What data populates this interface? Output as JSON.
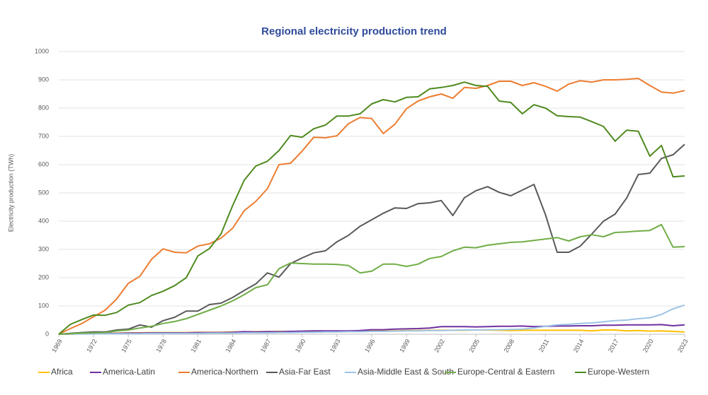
{
  "chart_data": {
    "type": "line",
    "title": "Regional electricity production trend",
    "y_label": "Electricity production (TWh)",
    "x": [
      1969,
      1970,
      1971,
      1972,
      1973,
      1974,
      1975,
      1976,
      1977,
      1978,
      1979,
      1980,
      1981,
      1982,
      1983,
      1984,
      1985,
      1986,
      1987,
      1988,
      1989,
      1990,
      1991,
      1992,
      1993,
      1994,
      1995,
      1996,
      1997,
      1998,
      1999,
      2000,
      2001,
      2002,
      2003,
      2004,
      2005,
      2006,
      2007,
      2008,
      2009,
      2010,
      2011,
      2012,
      2013,
      2014,
      2015,
      2016,
      2017,
      2018,
      2019,
      2020,
      2021,
      2022,
      2023
    ],
    "xlim": [
      1969,
      2023
    ],
    "xticks": [
      1969,
      1972,
      1975,
      1978,
      1981,
      1984,
      1987,
      1990,
      1993,
      1996,
      1999,
      2002,
      2005,
      2008,
      2011,
      2014,
      2017,
      2020,
      2023
    ],
    "ylim": [
      0,
      1000
    ],
    "yticks": [
      0,
      100,
      200,
      300,
      400,
      500,
      600,
      700,
      800,
      900,
      1000
    ],
    "grid": true,
    "legend": "bottom",
    "series": [
      {
        "name": "Africa",
        "color": "#ffc000",
        "values": [
          0,
          1,
          2,
          3,
          3,
          4,
          5,
          5,
          6,
          6,
          6,
          6,
          7,
          7,
          7,
          8,
          8,
          9,
          9,
          10,
          10,
          10,
          11,
          11,
          11,
          11,
          11,
          12,
          12,
          12,
          13,
          13,
          14,
          14,
          14,
          14,
          15,
          15,
          14,
          13,
          14,
          14,
          14,
          14,
          14,
          14,
          12,
          15,
          15,
          12,
          13,
          11,
          12,
          10,
          8
        ]
      },
      {
        "name": "America-Latin",
        "color": "#7030a0",
        "values": [
          0,
          1,
          2,
          2,
          3,
          3,
          4,
          4,
          5,
          5,
          5,
          5,
          6,
          6,
          6,
          7,
          9,
          8,
          9,
          9,
          10,
          11,
          12,
          12,
          12,
          12,
          13,
          16,
          16,
          18,
          19,
          20,
          22,
          27,
          27,
          27,
          26,
          27,
          28,
          28,
          29,
          27,
          28,
          29,
          29,
          30,
          30,
          32,
          32,
          33,
          33,
          33,
          34,
          30,
          33
        ]
      },
      {
        "name": "America-Northern",
        "color": "#ed7d31",
        "values": [
          0,
          20,
          38,
          62,
          85,
          125,
          180,
          205,
          265,
          302,
          290,
          288,
          312,
          320,
          340,
          375,
          437,
          470,
          515,
          600,
          605,
          648,
          697,
          695,
          702,
          745,
          767,
          763,
          710,
          743,
          798,
          825,
          840,
          850,
          835,
          873,
          870,
          880,
          895,
          895,
          880,
          890,
          877,
          860,
          885,
          897,
          892,
          900,
          900,
          902,
          905,
          880,
          857,
          853,
          862
        ]
      },
      {
        "name": "Asia-Far East",
        "color": "#595959",
        "values": [
          0,
          3,
          6,
          8,
          8,
          15,
          18,
          33,
          25,
          48,
          60,
          82,
          82,
          105,
          110,
          130,
          155,
          178,
          217,
          202,
          250,
          270,
          288,
          295,
          327,
          350,
          382,
          405,
          428,
          447,
          445,
          462,
          465,
          473,
          420,
          483,
          508,
          522,
          502,
          490,
          510,
          530,
          422,
          290,
          290,
          312,
          355,
          400,
          425,
          482,
          565,
          570,
          622,
          635,
          672
        ]
      },
      {
        "name": "Asia-Middle East & South",
        "color": "#9dc3e6",
        "values": [
          0,
          1,
          1,
          1,
          2,
          2,
          2,
          2,
          3,
          3,
          3,
          3,
          3,
          4,
          4,
          4,
          5,
          5,
          5,
          6,
          6,
          7,
          7,
          8,
          8,
          9,
          9,
          10,
          10,
          11,
          12,
          12,
          13,
          13,
          14,
          15,
          15,
          16,
          16,
          17,
          18,
          22,
          28,
          33,
          35,
          38,
          40,
          44,
          48,
          50,
          55,
          58,
          70,
          90,
          103
        ]
      },
      {
        "name": "Europe-Central & Eastern",
        "color": "#70ad47",
        "values": [
          0,
          2,
          4,
          5,
          6,
          12,
          15,
          22,
          28,
          38,
          45,
          55,
          70,
          85,
          100,
          118,
          140,
          165,
          175,
          232,
          252,
          250,
          248,
          248,
          247,
          243,
          217,
          223,
          248,
          248,
          240,
          248,
          268,
          275,
          295,
          308,
          306,
          315,
          320,
          325,
          327,
          332,
          337,
          342,
          330,
          345,
          352,
          345,
          360,
          362,
          365,
          367,
          388,
          308,
          310
        ]
      },
      {
        "name": "Europe-Western",
        "color": "#4e8a1e",
        "values": [
          0,
          35,
          52,
          68,
          67,
          77,
          103,
          112,
          137,
          152,
          172,
          200,
          277,
          303,
          355,
          455,
          545,
          595,
          612,
          650,
          703,
          697,
          727,
          740,
          772,
          772,
          780,
          815,
          830,
          822,
          838,
          840,
          868,
          873,
          880,
          892,
          880,
          877,
          825,
          820,
          780,
          812,
          800,
          773,
          770,
          768,
          752,
          735,
          683,
          722,
          718,
          630,
          668,
          557,
          560
        ]
      }
    ]
  }
}
